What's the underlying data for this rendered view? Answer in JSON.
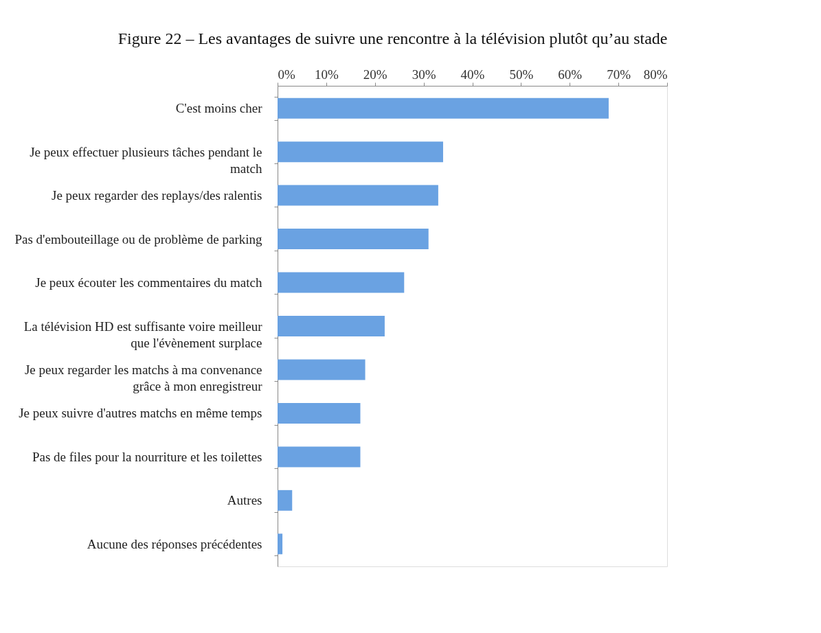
{
  "chart_data": {
    "type": "bar",
    "orientation": "horizontal",
    "title": "Figure 22 – Les avantages de suivre une rencontre à la télévision plutôt qu’au stade",
    "categories": [
      "C'est moins cher",
      "Je peux effectuer plusieurs tâches pendant le match",
      "Je peux regarder des replays/des ralentis",
      "Pas d'embouteillage ou de problème de parking",
      "Je peux écouter les commentaires du match",
      "La télévision HD est suffisante voire meilleur que l'évènement surplace",
      "Je peux regarder les matchs à ma convenance grâce à mon enregistreur",
      "Je peux suivre d'autres matchs en même temps",
      "Pas de files pour la nourriture et les toilettes",
      "Autres",
      "Aucune des réponses précédentes"
    ],
    "values": [
      68,
      34,
      33,
      31,
      26,
      22,
      18,
      17,
      17,
      3,
      1
    ],
    "color": "#6aa2e2",
    "xlim": [
      0,
      80
    ],
    "xticks": [
      {
        "value": 0,
        "label": "0%"
      },
      {
        "value": 10,
        "label": "10%"
      },
      {
        "value": 20,
        "label": "20%"
      },
      {
        "value": 30,
        "label": "30%"
      },
      {
        "value": 40,
        "label": "40%"
      },
      {
        "value": 50,
        "label": "50%"
      },
      {
        "value": 60,
        "label": "60%"
      },
      {
        "value": 70,
        "label": "70%"
      },
      {
        "value": 80,
        "label": "80%"
      }
    ],
    "grid": false
  }
}
